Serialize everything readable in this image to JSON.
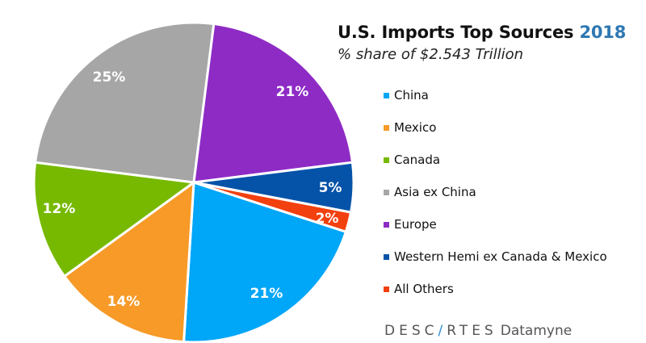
{
  "header": {
    "title": "U.S. Imports Top Sources",
    "year": "2018",
    "subtitle": "% share of $2.543 Trillion"
  },
  "legend": [
    {
      "label": "China",
      "color": "#00a6f8"
    },
    {
      "label": "Mexico",
      "color": "#f79a28"
    },
    {
      "label": "Canada",
      "color": "#76b900"
    },
    {
      "label": "Asia ex China",
      "color": "#a6a6a6"
    },
    {
      "label": "Europe",
      "color": "#8e2bc5"
    },
    {
      "label": "Western Hemi ex Canada & Mexico",
      "color": "#0553a8"
    },
    {
      "label": "All Others",
      "color": "#f2400e"
    }
  ],
  "footer": {
    "brand_pre": "DESC",
    "brand_accent": "/",
    "brand_post": "RTES",
    "product": "Datamyne"
  },
  "chart_data": {
    "type": "pie",
    "title": "U.S. Imports Top Sources 2018",
    "subtitle": "% share of $2.543 Trillion",
    "total": "$2.543 Trillion",
    "legend_position": "right",
    "slices": [
      {
        "name": "China",
        "value": 21,
        "label": "21%",
        "color": "#00a6f8"
      },
      {
        "name": "Mexico",
        "value": 14,
        "label": "14%",
        "color": "#f79a28"
      },
      {
        "name": "Canada",
        "value": 12,
        "label": "12%",
        "color": "#76b900"
      },
      {
        "name": "Asia ex China",
        "value": 25,
        "label": "25%",
        "color": "#a6a6a6"
      },
      {
        "name": "Europe",
        "value": 21,
        "label": "21%",
        "color": "#8e2bc5"
      },
      {
        "name": "Western Hemi ex Canada & Mexico",
        "value": 5,
        "label": "5%",
        "color": "#0553a8"
      },
      {
        "name": "All Others",
        "value": 2,
        "label": "2%",
        "color": "#f2400e"
      }
    ],
    "categories": [
      "China",
      "Mexico",
      "Canada",
      "Asia ex China",
      "Europe",
      "Western Hemi ex Canada & Mexico",
      "All Others"
    ],
    "values": [
      21,
      14,
      12,
      25,
      21,
      5,
      2
    ]
  }
}
